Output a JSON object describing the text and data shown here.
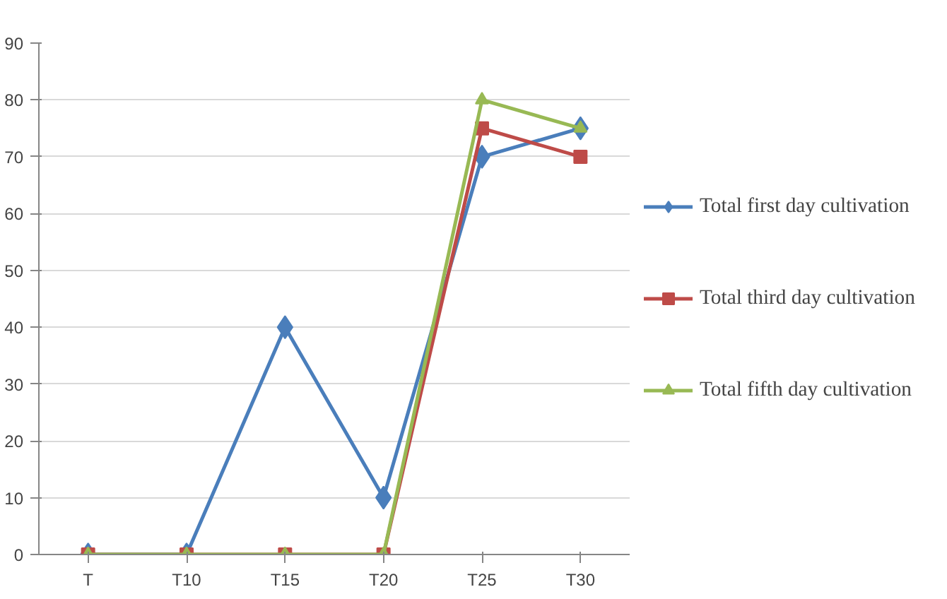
{
  "chart_data": {
    "type": "line",
    "categories": [
      "T",
      "T10",
      "T15",
      "T20",
      "T25",
      "T30"
    ],
    "series": [
      {
        "name": "Total first day cultivation",
        "color": "#4a7ebb",
        "marker": "diamond",
        "values": [
          0,
          0,
          40,
          10,
          70,
          75
        ]
      },
      {
        "name": "Total third day cultivation",
        "color": "#be4b48",
        "marker": "square",
        "values": [
          0,
          0,
          0,
          0,
          75,
          70
        ]
      },
      {
        "name": "Total fifth day cultivation",
        "color": "#98b954",
        "marker": "triangle",
        "values": [
          0,
          0,
          0,
          0,
          80,
          75
        ]
      }
    ],
    "ylim": [
      0,
      90
    ],
    "yticks": [
      0,
      10,
      20,
      30,
      40,
      50,
      60,
      70,
      80,
      90
    ],
    "grid": "y",
    "legend": "right",
    "line_style": "solid"
  }
}
